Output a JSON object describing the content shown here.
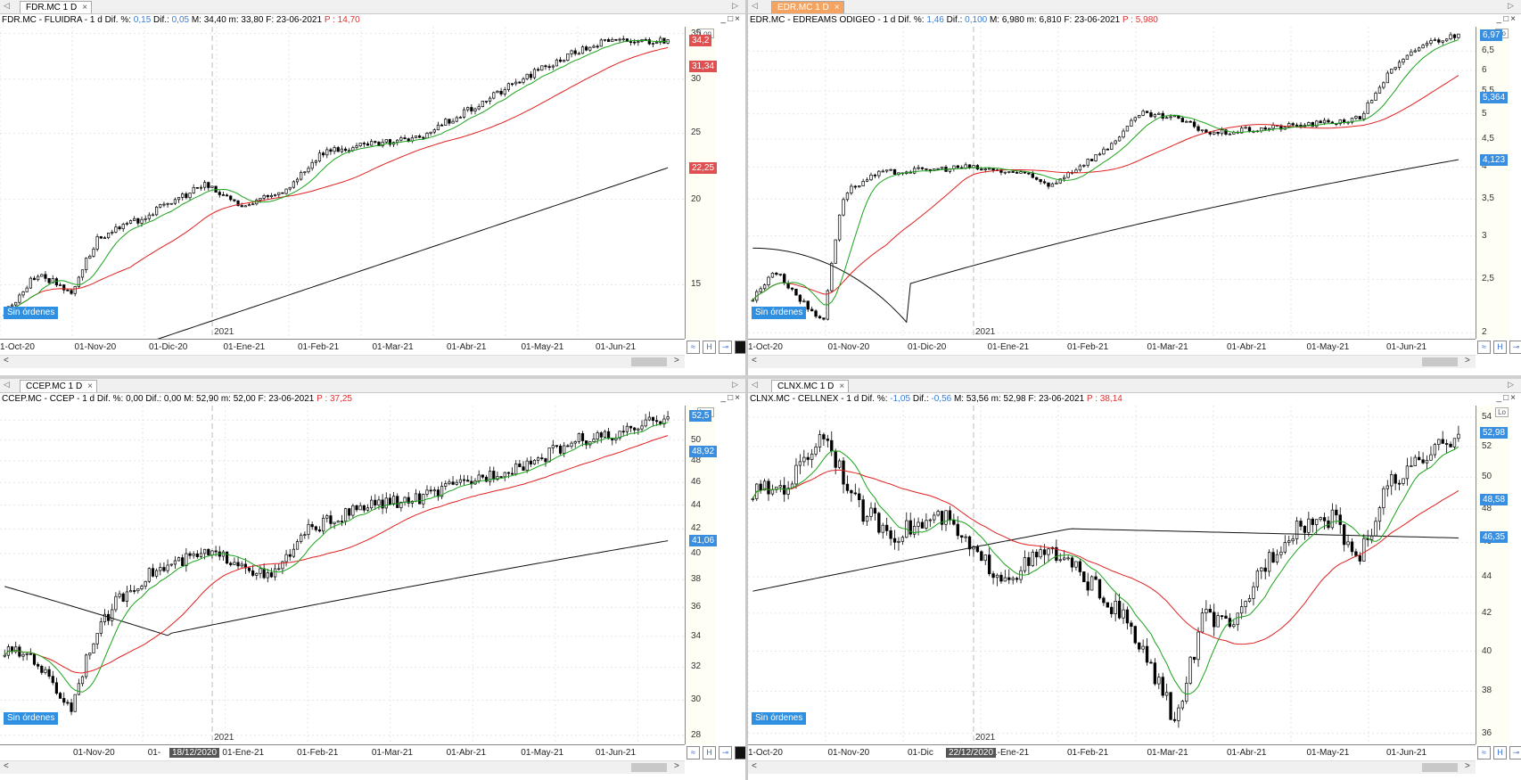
{
  "panes": [
    {
      "id": "fdr",
      "tab": {
        "label": "FDR.MC 1 D",
        "close": "×",
        "active": false
      },
      "info": {
        "prefix": "FDR.MC - FLUIDRA -  1 d  Dif. %: ",
        "pct": "0,15",
        "mid1": "  Dif.: ",
        "dif": "0,05",
        "mid2": "  M: 34,40  m: 33,80  F: 23-06-2021  ",
        "p": "P : 14,70"
      },
      "yticks": [
        {
          "v": 35,
          "t": "35"
        },
        {
          "v": 30,
          "t": "30"
        },
        {
          "v": 25,
          "t": "25"
        },
        {
          "v": 20,
          "t": "20"
        },
        {
          "v": 15,
          "t": "15"
        }
      ],
      "ylim": [
        12.5,
        35.8
      ],
      "log": true,
      "log_label": "Log",
      "price_labels": [
        {
          "v": 34.2,
          "t": "34,2",
          "c": "red"
        },
        {
          "v": 31.34,
          "t": "31,34",
          "c": "red"
        },
        {
          "v": 22.25,
          "t": "22,25",
          "c": "red"
        }
      ],
      "xticks": [
        "1-Oct-20",
        "01-Nov-20",
        "01-Dic-20",
        "01-Ene-21",
        "01-Feb-21",
        "01-Mar-21",
        "01-Abr-21",
        "01-May-21",
        "01-Jun-21"
      ],
      "year_label": "2021",
      "sin_ordenes": "Sin órdenes",
      "series": {
        "start": 13.6,
        "end": 34.2,
        "ma200_start": 10.0,
        "ma200_end": 22.25,
        "ma50_start": 13.6,
        "ma50_end": 31.34,
        "shape": "fdr"
      }
    },
    {
      "id": "edr",
      "tab": {
        "label": "EDR.MC 1 D",
        "close": "×",
        "active": true
      },
      "info": {
        "prefix": "EDR.MC - EDREAMS ODIGEO -  1 d  Dif. %: ",
        "pct": "1,46",
        "mid1": "  Dif.: ",
        "dif": "0,100",
        "mid2": "  M: 6,980  m: 6,810  F: 23-06-2021  ",
        "p": "P : 5,980"
      },
      "yticks": [
        {
          "v": 6.5,
          "t": "6,5"
        },
        {
          "v": 6,
          "t": "6"
        },
        {
          "v": 5.5,
          "t": "5,5"
        },
        {
          "v": 5,
          "t": "5"
        },
        {
          "v": 4.5,
          "t": "4,5"
        },
        {
          "v": 4,
          "t": "4"
        },
        {
          "v": 3.5,
          "t": "3,5"
        },
        {
          "v": 3,
          "t": "3"
        },
        {
          "v": 2.5,
          "t": "2,5"
        },
        {
          "v": 2,
          "t": "2"
        }
      ],
      "ylim": [
        1.95,
        7.2
      ],
      "log": true,
      "log_label": "Lo",
      "price_labels": [
        {
          "v": 6.97,
          "t": "6,97",
          "c": "blue"
        },
        {
          "v": 5.364,
          "t": "5,364",
          "c": "blue"
        },
        {
          "v": 4.123,
          "t": "4,123",
          "c": "blue"
        }
      ],
      "xticks": [
        "1-Oct-20",
        "01-Nov-20",
        "01-Dic-20",
        "01-Ene-21",
        "01-Feb-21",
        "01-Mar-21",
        "01-Abr-21",
        "01-May-21",
        "01-Jun-21"
      ],
      "year_label": "2021",
      "sin_ordenes": "Sin órdenes",
      "series": {
        "shape": "edr"
      }
    },
    {
      "id": "ccep",
      "tab": {
        "label": "CCEP.MC 1 D",
        "close": "×",
        "active": false
      },
      "info": {
        "prefix": "CCEP.MC - CCEP -  1 d  Dif. %: 0,00  Dif.: 0,00  M: 52,90  m: 52,00  F: 23-06-2021  ",
        "pct": "",
        "mid1": "",
        "dif": "",
        "mid2": "",
        "p": "P : 37,25"
      },
      "yticks": [
        {
          "v": 52,
          "t": "52"
        },
        {
          "v": 50,
          "t": "50"
        },
        {
          "v": 48,
          "t": "48"
        },
        {
          "v": 46,
          "t": "46"
        },
        {
          "v": 44,
          "t": "44"
        },
        {
          "v": 42,
          "t": "42"
        },
        {
          "v": 40,
          "t": "40"
        },
        {
          "v": 38,
          "t": "38"
        },
        {
          "v": 36,
          "t": "36"
        },
        {
          "v": 34,
          "t": "34"
        },
        {
          "v": 32,
          "t": "32"
        },
        {
          "v": 30,
          "t": "30"
        },
        {
          "v": 28,
          "t": "28"
        }
      ],
      "ylim": [
        27.5,
        53.5
      ],
      "log": true,
      "log_label": "Log",
      "price_labels": [
        {
          "v": 52.5,
          "t": "52,5",
          "c": "blue"
        },
        {
          "v": 48.92,
          "t": "48,92",
          "c": "blue"
        },
        {
          "v": 41.06,
          "t": "41,06",
          "c": "blue"
        }
      ],
      "xticks": [
        "01-Nov-20",
        "01-",
        "01-Ene-21",
        "01-Feb-21",
        "01-Mar-21",
        "01-Abr-21",
        "01-May-21",
        "01-Jun-21"
      ],
      "x_marker": "18/12/2020",
      "year_label": "2021",
      "sin_ordenes": "Sin órdenes",
      "series": {
        "shape": "ccep"
      }
    },
    {
      "id": "clnx",
      "tab": {
        "label": "CLNX.MC 1 D",
        "close": "×",
        "active": false
      },
      "info": {
        "prefix": "CLNX.MC - CELLNEX -  1 d  Dif. %: ",
        "pct": "-1,05",
        "mid1": "  Dif.: ",
        "dif": "-0,56",
        "mid2": "  M: 53,56  m: 52,98  F: 23-06-2021  ",
        "p": "P : 38,14"
      },
      "yticks": [
        {
          "v": 54,
          "t": "54"
        },
        {
          "v": 52,
          "t": "52"
        },
        {
          "v": 50,
          "t": "50"
        },
        {
          "v": 48,
          "t": "48"
        },
        {
          "v": 46,
          "t": "46"
        },
        {
          "v": 44,
          "t": "44"
        },
        {
          "v": 42,
          "t": "42"
        },
        {
          "v": 40,
          "t": "40"
        },
        {
          "v": 38,
          "t": "38"
        },
        {
          "v": 36,
          "t": "36"
        }
      ],
      "ylim": [
        35.5,
        54.8
      ],
      "log": true,
      "log_label": "Lo",
      "price_labels": [
        {
          "v": 52.98,
          "t": "52,98",
          "c": "blue"
        },
        {
          "v": 48.58,
          "t": "48,58",
          "c": "blue"
        },
        {
          "v": 46.35,
          "t": "46,35",
          "c": "blue"
        }
      ],
      "xticks": [
        "1-Oct-20",
        "01-Nov-20",
        "01-Dic",
        "01-Ene-21",
        "01-Feb-21",
        "01-Mar-21",
        "01-Abr-21",
        "01-May-21",
        "01-Jun-21"
      ],
      "x_marker": "22/12/2020",
      "year_label": "2021",
      "sin_ordenes": "Sin órdenes",
      "series": {
        "shape": "clnx"
      }
    }
  ],
  "colors": {
    "ma_short": "#1aa31a",
    "ma_mid": "#e02020",
    "ma_long": "#111111",
    "candle": "#000000"
  }
}
